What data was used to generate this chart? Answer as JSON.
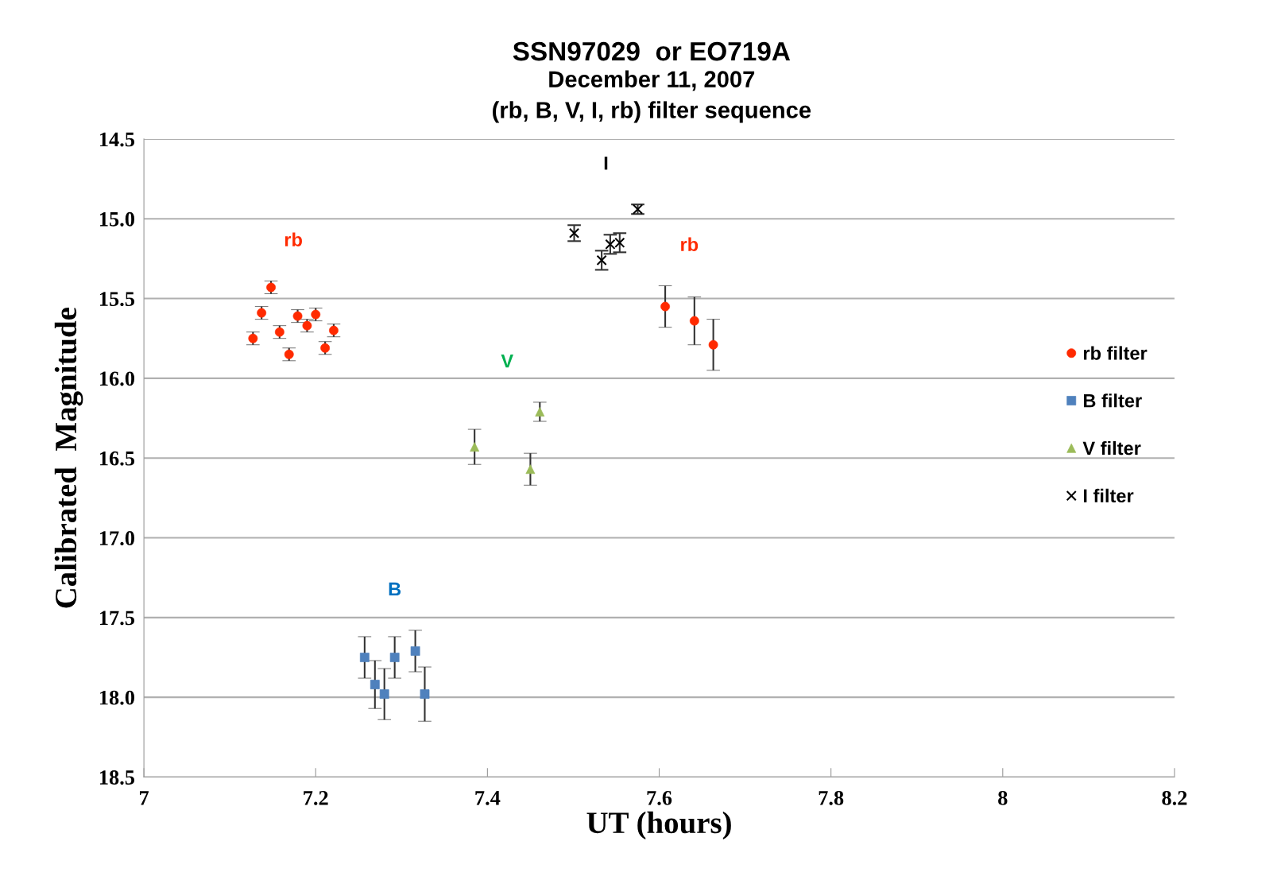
{
  "chart_data": {
    "type": "scatter",
    "title": "SSN97029  or EO719A",
    "subtitle": "December 11, 2007\n(rb, B, V, I, rb) filter sequence",
    "xlabel": "UT (hours)",
    "ylabel": "Calibrated  Magnitude",
    "xlim": [
      7,
      8.2
    ],
    "xticks": [
      7,
      7.2,
      7.4,
      7.6,
      7.8,
      8,
      8.2
    ],
    "ylim": [
      18.5,
      14.5
    ],
    "yticks": [
      {
        "value": 14.5,
        "label": "14.5"
      },
      {
        "value": 15,
        "label": "15.0"
      },
      {
        "value": 15.5,
        "label": "15.5"
      },
      {
        "value": 16,
        "label": "16.0"
      },
      {
        "value": 16.5,
        "label": "16.5"
      },
      {
        "value": 17,
        "label": "17.0"
      },
      {
        "value": 17.5,
        "label": "17.5"
      },
      {
        "value": 18,
        "label": "18.0"
      },
      {
        "value": 18.5,
        "label": "18.5"
      }
    ],
    "grid": "y",
    "legend": "right",
    "series": [
      {
        "name": "rb filter",
        "color": "#ff2a00",
        "marker": "circle",
        "x": [
          7.127,
          7.137,
          7.148,
          7.158,
          7.169,
          7.179,
          7.19,
          7.2,
          7.211,
          7.221,
          7.607,
          7.641,
          7.663
        ],
        "values": [
          15.75,
          15.59,
          15.43,
          15.71,
          15.85,
          15.61,
          15.67,
          15.6,
          15.81,
          15.7,
          15.55,
          15.64,
          15.79
        ],
        "errors": [
          0.04,
          0.04,
          0.04,
          0.04,
          0.04,
          0.04,
          0.04,
          0.04,
          0.04,
          0.04,
          0.13,
          0.15,
          0.16
        ]
      },
      {
        "name": "B filter",
        "color": "#4f81bd",
        "marker": "square",
        "x": [
          7.257,
          7.269,
          7.28,
          7.292,
          7.316,
          7.327
        ],
        "values": [
          17.75,
          17.92,
          17.98,
          17.75,
          17.71,
          17.98
        ],
        "errors": [
          0.13,
          0.15,
          0.16,
          0.13,
          0.13,
          0.17
        ]
      },
      {
        "name": "V filter",
        "color": "#9bbb59",
        "marker": "triangle",
        "x": [
          7.385,
          7.45,
          7.461
        ],
        "values": [
          16.43,
          16.57,
          16.21
        ],
        "errors": [
          0.11,
          0.1,
          0.06
        ]
      },
      {
        "name": "I filter",
        "color": "#000000",
        "marker": "cross",
        "x": [
          7.501,
          7.533,
          7.543,
          7.554,
          7.575
        ],
        "values": [
          15.09,
          15.26,
          15.16,
          15.15,
          14.94
        ],
        "errors": [
          0.05,
          0.06,
          0.06,
          0.06,
          0.03
        ]
      }
    ],
    "annotations": [
      "rb",
      "rb",
      "V",
      "B",
      "I"
    ]
  }
}
